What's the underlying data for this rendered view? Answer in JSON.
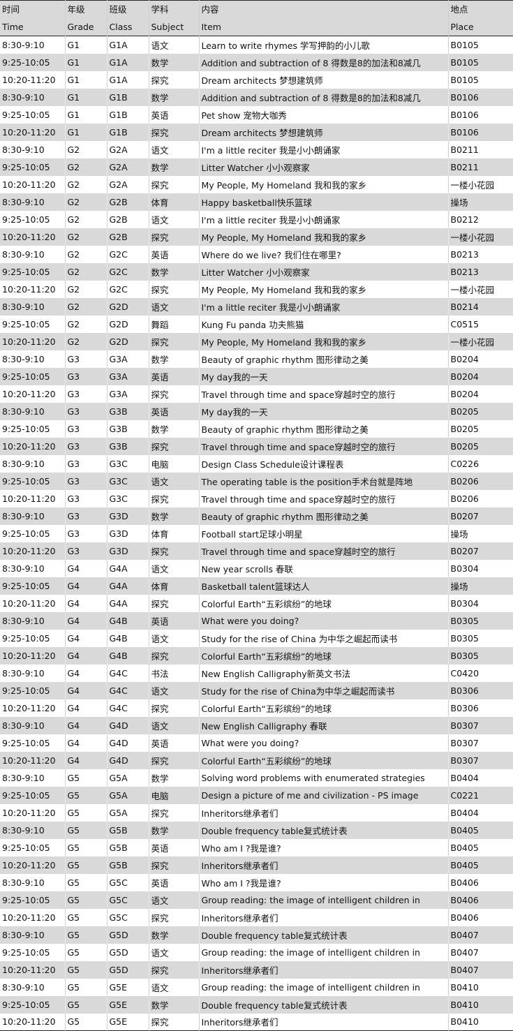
{
  "headers": [
    {
      "zh": "时间",
      "en": "Time"
    },
    {
      "zh": "年级",
      "en": "Grade"
    },
    {
      "zh": "班级",
      "en": "Class"
    },
    {
      "zh": "学科",
      "en": "Subject"
    },
    {
      "zh": "内容",
      "en": "Item"
    },
    {
      "zh": "地点",
      "en": "Place"
    }
  ],
  "rows": [
    [
      "8:30-9:10",
      "G1",
      "G1A",
      "语文",
      "Learn to write rhymes 学写押韵的小儿歌",
      "B0105"
    ],
    [
      "9:25-10:05",
      "G1",
      "G1A",
      "数学",
      "Addition and subtraction of 8 得数是8的加法和8减几",
      "B0105"
    ],
    [
      "10:20-11:20",
      "G1",
      "G1A",
      "探究",
      "Dream architects 梦想建筑师",
      "B0105"
    ],
    [
      "8:30-9:10",
      "G1",
      "G1B",
      "数学",
      "Addition and subtraction of 8 得数是8的加法和8减几",
      "B0106"
    ],
    [
      "9:25-10:05",
      "G1",
      "G1B",
      "英语",
      "Pet show 宠物大咖秀",
      "B0106"
    ],
    [
      "10:20-11:20",
      "G1",
      "G1B",
      "探究",
      "Dream architects 梦想建筑师",
      "B0106"
    ],
    [
      "8:30-9:10",
      "G2",
      "G2A",
      "语文",
      "I'm a little reciter 我是小小朗诵家",
      "B0211"
    ],
    [
      "9:25-10:05",
      "G2",
      "G2A",
      "数学",
      "Litter Watcher  小小观察家",
      "B0211"
    ],
    [
      "10:20-11:20",
      "G2",
      "G2A",
      "探究",
      "My People, My Homeland 我和我的家乡",
      "一楼小花园"
    ],
    [
      "8:30-9:10",
      "G2",
      "G2B",
      "体育",
      "Happy basketball快乐篮球",
      "操场"
    ],
    [
      "9:25-10:05",
      "G2",
      "G2B",
      "语文",
      "I'm a little reciter 我是小小朗诵家",
      "B0212"
    ],
    [
      "10:20-11:20",
      "G2",
      "G2B",
      "探究",
      "My People, My Homeland 我和我的家乡",
      "一楼小花园"
    ],
    [
      "8:30-9:10",
      "G2",
      "G2C",
      "英语",
      "Where do we live? 我们住在哪里?",
      "B0213"
    ],
    [
      "9:25-10:05",
      "G2",
      "G2C",
      "数学",
      "Litter Watcher 小小观察家",
      "B0213"
    ],
    [
      "10:20-11:20",
      "G2",
      "G2C",
      "探究",
      "My People, My Homeland 我和我的家乡",
      "一楼小花园"
    ],
    [
      "8:30-9:10",
      "G2",
      "G2D",
      "语文",
      "I'm a little reciter 我是小小朗诵家",
      "B0214"
    ],
    [
      "9:25-10:05",
      "G2",
      "G2D",
      "舞蹈",
      "Kung Fu panda   功夫熊猫",
      "C0515"
    ],
    [
      "10:20-11:20",
      "G2",
      "G2D",
      "探究",
      "My People, My Homeland 我和我的家乡",
      "一楼小花园"
    ],
    [
      "8:30-9:10",
      "G3",
      "G3A",
      "数学",
      "Beauty of graphic rhythm 图形律动之美",
      "B0204"
    ],
    [
      "9:25-10:05",
      "G3",
      "G3A",
      "英语",
      "My day我的一天",
      "B0204"
    ],
    [
      "10:20-11:20",
      "G3",
      "G3A",
      "探究",
      "Travel through time and space穿越时空的旅行",
      "B0204"
    ],
    [
      "8:30-9:10",
      "G3",
      "G3B",
      "英语",
      "My day我的一天",
      "B0205"
    ],
    [
      "9:25-10:05",
      "G3",
      "G3B",
      "数学",
      "Beauty of graphic rhythm 图形律动之美",
      "B0205"
    ],
    [
      "10:20-11:20",
      "G3",
      "G3B",
      "探究",
      "Travel through time and space穿越时空的旅行",
      "B0205"
    ],
    [
      "8:30-9:10",
      "G3",
      "G3C",
      "电脑",
      "Design Class Schedule设计课程表",
      "C0226"
    ],
    [
      "9:25-10:05",
      "G3",
      "G3C",
      "语文",
      "The operating table is the position手术台就是阵地",
      "B0206"
    ],
    [
      "10:20-11:20",
      "G3",
      "G3C",
      "探究",
      "Travel through time and space穿越时空的旅行",
      "B0206"
    ],
    [
      "8:30-9:10",
      "G3",
      "G3D",
      "数学",
      "Beauty of graphic rhythm 图形律动之美",
      "B0207"
    ],
    [
      "9:25-10:05",
      "G3",
      "G3D",
      "体育",
      "Football start足球小明星",
      "操场"
    ],
    [
      "10:20-11:20",
      "G3",
      "G3D",
      "探究",
      "Travel through time and space穿越时空的旅行",
      "B0207"
    ],
    [
      "8:30-9:10",
      "G4",
      "G4A",
      "语文",
      "New year scrolls 春联",
      "B0304"
    ],
    [
      "9:25-10:05",
      "G4",
      "G4A",
      "体育",
      "Basketball talent篮球达人",
      "操场"
    ],
    [
      "10:20-11:20",
      "G4",
      "G4A",
      "探究",
      "Colorful Earth“五彩缤纷”的地球",
      "B0304"
    ],
    [
      "8:30-9:10",
      "G4",
      "G4B",
      "英语",
      "What were you doing?",
      "B0305"
    ],
    [
      "9:25-10:05",
      "G4",
      "G4B",
      "语文",
      "Study for the rise of China 为中华之崛起而读书",
      "B0305"
    ],
    [
      "10:20-11:20",
      "G4",
      "G4B",
      "探究",
      "Colorful Earth“五彩缤纷”的地球",
      "B0305"
    ],
    [
      "8:30-9:10",
      "G4",
      "G4C",
      "书法",
      "New English Calligraphy新英文书法",
      "C0420"
    ],
    [
      "9:25-10:05",
      "G4",
      "G4C",
      "语文",
      "Study for the rise of China为中华之崛起而读书",
      "B0306"
    ],
    [
      "10:20-11:20",
      "G4",
      "G4C",
      "探究",
      "Colorful Earth“五彩缤纷”的地球",
      "B0306"
    ],
    [
      "8:30-9:10",
      "G4",
      "G4D",
      "语文",
      "New English Calligraphy 春联",
      "B0307"
    ],
    [
      "9:25-10:05",
      "G4",
      "G4D",
      "英语",
      "What were you doing?",
      "B0307"
    ],
    [
      "10:20-11:20",
      "G4",
      "G4D",
      "探究",
      "Colorful Earth“五彩缤纷”的地球",
      "B0307"
    ],
    [
      "8:30-9:10",
      "G5",
      "G5A",
      "数学",
      "Solving word problems with enumerated strategies",
      "B0404"
    ],
    [
      "9:25-10:05",
      "G5",
      "G5A",
      "电脑",
      "Design a picture of me and civilization - PS image",
      "C0221"
    ],
    [
      "10:20-11:20",
      "G5",
      "G5A",
      "探究",
      "Inheritors继承者们",
      "B0404"
    ],
    [
      "8:30-9:10",
      "G5",
      "G5B",
      "数学",
      "Double frequency table复式统计表",
      "B0405"
    ],
    [
      "9:25-10:05",
      "G5",
      "G5B",
      "英语",
      "Who am I ?我是谁?",
      "B0405"
    ],
    [
      "10:20-11:20",
      "G5",
      "G5B",
      "探究",
      "Inheritors继承者们",
      "B0405"
    ],
    [
      "8:30-9:10",
      "G5",
      "G5C",
      "英语",
      "Who am I ?我是谁?",
      "B0406"
    ],
    [
      "9:25-10:05",
      "G5",
      "G5C",
      "语文",
      "Group reading: the image of intelligent children in",
      "B0406"
    ],
    [
      "10:20-11:20",
      "G5",
      "G5C",
      "探究",
      "Inheritors继承者们",
      "B0406"
    ],
    [
      "8:30-9:10",
      "G5",
      "G5D",
      "数学",
      "Double frequency table复式统计表",
      "B0407"
    ],
    [
      "9:25-10:05",
      "G5",
      "G5D",
      "语文",
      "Group reading: the image of intelligent children in",
      "B0407"
    ],
    [
      "10:20-11:20",
      "G5",
      "G5D",
      "探究",
      "Inheritors继承者们",
      "B0407"
    ],
    [
      "8:30-9:10",
      "G5",
      "G5E",
      "语文",
      "Group reading: the image of intelligent children in",
      "B0410"
    ],
    [
      "9:25-10:05",
      "G5",
      "G5E",
      "数学",
      "Double frequency table复式统计表",
      "B0410"
    ],
    [
      "10:20-11:20",
      "G5",
      "G5E",
      "探究",
      "Inheritors继承者们",
      "B0410"
    ]
  ]
}
